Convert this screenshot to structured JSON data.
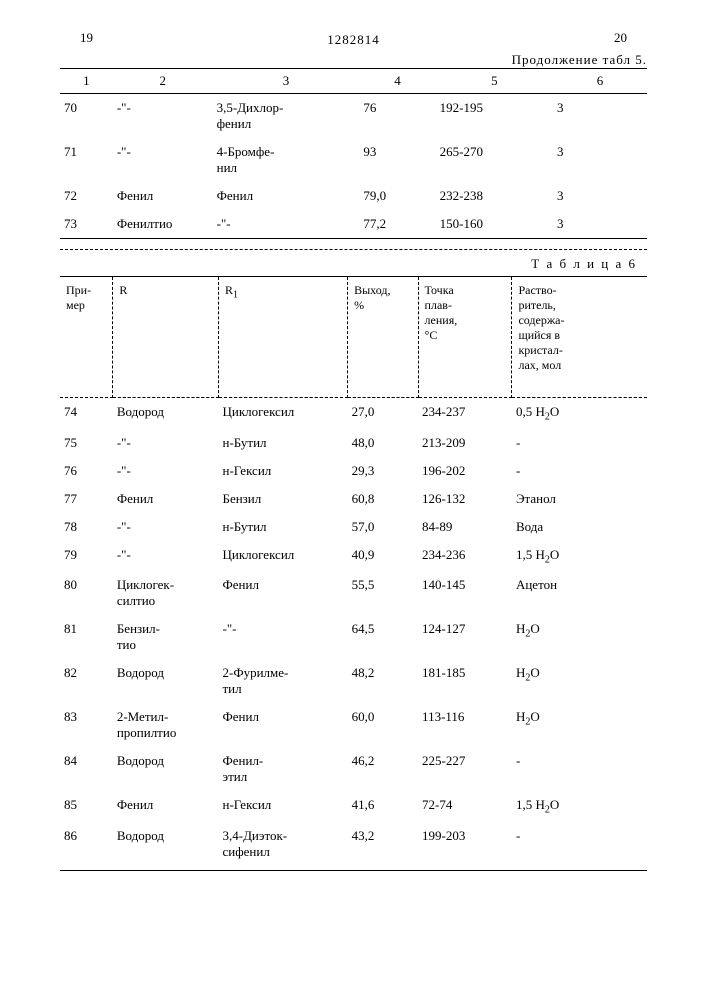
{
  "header": {
    "page_left": "19",
    "page_right": "20",
    "document_number": "1282814",
    "continuation_label": "Продолжение табл 5."
  },
  "table5": {
    "columns": [
      "1",
      "2",
      "3",
      "4",
      "5",
      "6"
    ],
    "rows": [
      {
        "c1": "70",
        "c2": "-\"-",
        "c3": "3,5-Дихлор-\nфенил",
        "c4": "76",
        "c5": "192-195",
        "c6": "3"
      },
      {
        "c1": "71",
        "c2": "-\"-",
        "c3": "4-Бромфе-\nнил",
        "c4": "93",
        "c5": "265-270",
        "c6": "3"
      },
      {
        "c1": "72",
        "c2": "Фенил",
        "c3": "Фенил",
        "c4": "79,0",
        "c5": "232-238",
        "c6": "3"
      },
      {
        "c1": "73",
        "c2": "Фенилтио",
        "c3": "-\"-",
        "c4": "77,2",
        "c5": "150-160",
        "c6": "3"
      }
    ]
  },
  "table6": {
    "title": "Т а б л и ц а   6",
    "columns": {
      "c1": "При-\nмер",
      "c2": "R",
      "c3": "R₁",
      "c4": "Выход,\n%",
      "c5": "Точка\nплав-\nления,\n°C",
      "c6": "Раство-\nритель,\nсодержа-\nщийся в\nкристал-\nлах, мол"
    },
    "rows": [
      {
        "c1": "74",
        "c2": "Водород",
        "c3": "Циклогексил",
        "c4": "27,0",
        "c5": "234-237",
        "c6": "0,5 H₂O"
      },
      {
        "c1": "75",
        "c2": "-\"-",
        "c3": "н-Бутил",
        "c4": "48,0",
        "c5": "213-209",
        "c6": "-"
      },
      {
        "c1": "76",
        "c2": "-\"-",
        "c3": "н-Гексил",
        "c4": "29,3",
        "c5": "196-202",
        "c6": "-"
      },
      {
        "c1": "77",
        "c2": "Фенил",
        "c3": "Бензил",
        "c4": "60,8",
        "c5": "126-132",
        "c6": "Этанол"
      },
      {
        "c1": "78",
        "c2": "-\"-",
        "c3": "н-Бутил",
        "c4": "57,0",
        "c5": "84-89",
        "c6": "Вода"
      },
      {
        "c1": "79",
        "c2": "-\"-",
        "c3": "Циклогексил",
        "c4": "40,9",
        "c5": "234-236",
        "c6": "1,5 H₂O"
      },
      {
        "c1": "80",
        "c2": "Циклогек-\nсилтио",
        "c3": "Фенил",
        "c4": "55,5",
        "c5": "140-145",
        "c6": "Ацетон"
      },
      {
        "c1": "81",
        "c2": "Бензил-\nтио",
        "c3": "-\"-",
        "c4": "64,5",
        "c5": "124-127",
        "c6": "H₂O"
      },
      {
        "c1": "82",
        "c2": "Водород",
        "c3": "2-Фурилме-\nтил",
        "c4": "48,2",
        "c5": "181-185",
        "c6": "H₂O"
      },
      {
        "c1": "83",
        "c2": "2-Метил-\nпропилтио",
        "c3": "Фенил",
        "c4": "60,0",
        "c5": "113-116",
        "c6": "H₂O"
      },
      {
        "c1": "84",
        "c2": "Водород",
        "c3": "Фенил-\nэтил",
        "c4": "46,2",
        "c5": "225-227",
        "c6": "-"
      },
      {
        "c1": "85",
        "c2": "Фенил",
        "c3": "н-Гексил",
        "c4": "41,6",
        "c5": "72-74",
        "c6": "1,5 H₂O"
      },
      {
        "c1": "86",
        "c2": "Водород",
        "c3": "3,4-Диэток-\nсифенил",
        "c4": "43,2",
        "c5": "199-203",
        "c6": "-"
      }
    ]
  }
}
